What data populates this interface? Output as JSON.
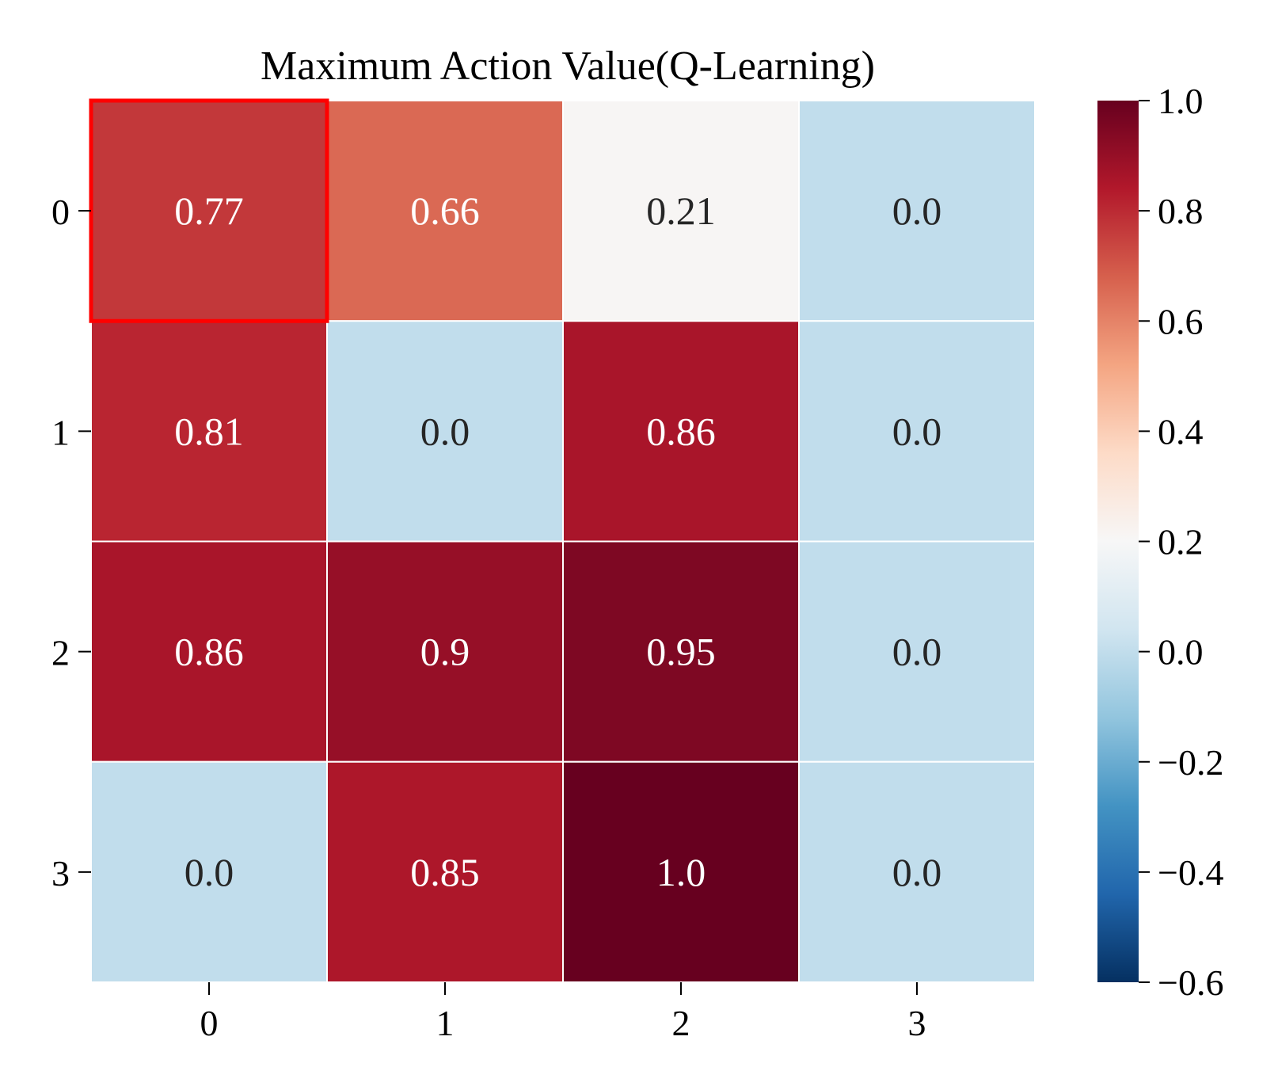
{
  "chart_data": {
    "type": "heatmap",
    "title": "Maximum Action Value(Q-Learning)",
    "xlabel": "",
    "ylabel": "",
    "x_ticks": [
      "0",
      "1",
      "2",
      "3"
    ],
    "y_ticks": [
      "0",
      "1",
      "2",
      "3"
    ],
    "rows": [
      {
        "values": [
          0.77,
          0.66,
          0.21,
          0.0
        ],
        "labels": [
          "0.77",
          "0.66",
          "0.21",
          "0.0"
        ]
      },
      {
        "values": [
          0.81,
          0.0,
          0.86,
          0.0
        ],
        "labels": [
          "0.81",
          "0.0",
          "0.86",
          "0.0"
        ]
      },
      {
        "values": [
          0.86,
          0.9,
          0.95,
          0.0
        ],
        "labels": [
          "0.86",
          "0.9",
          "0.95",
          "0.0"
        ]
      },
      {
        "values": [
          0.0,
          0.85,
          1.0,
          0.0
        ],
        "labels": [
          "0.0",
          "0.85",
          "1.0",
          "0.0"
        ]
      }
    ],
    "colorbar": {
      "range": [
        -0.6,
        1.0
      ],
      "ticks": [
        1.0,
        0.8,
        0.6,
        0.4,
        0.2,
        0.0,
        -0.2,
        -0.4,
        -0.6
      ],
      "tick_labels": [
        "1.0",
        "0.8",
        "0.6",
        "0.4",
        "0.2",
        "0.0",
        "−0.2",
        "−0.4",
        "−0.6"
      ],
      "colormap": "RdBu_r",
      "center": 0.2
    },
    "highlight": {
      "row": 0,
      "col": 0,
      "color": "#ff0000"
    },
    "grid_line_color": "#ffffff"
  }
}
